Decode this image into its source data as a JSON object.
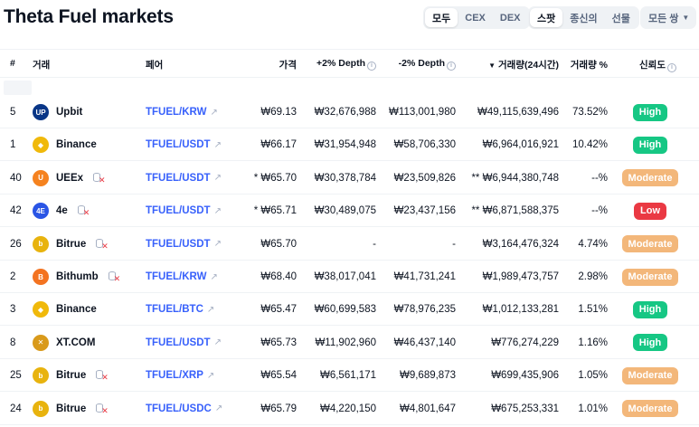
{
  "page": {
    "title": "Theta Fuel markets"
  },
  "filters": {
    "type_options": [
      "모두",
      "CEX",
      "DEX"
    ],
    "type_active": 0,
    "market_options": [
      "스팟",
      "종신의",
      "선물"
    ],
    "market_active": 0,
    "pair_select": {
      "label": "모든 쌍",
      "icon": "chevron-down-icon"
    }
  },
  "table": {
    "headers": {
      "rank": "#",
      "exchange": "거래",
      "pair": "페어",
      "price": "가격",
      "depth_plus": "+2% Depth",
      "depth_minus": "-2% Depth",
      "volume": "거래량(24시간)",
      "volume_sort_icon": "sort-down-icon",
      "volume_pct": "거래량 %",
      "trust": "신뢰도",
      "info_icon": "info-icon"
    },
    "rows": [
      {
        "rank": "5",
        "exchange": "Upbit",
        "logo_text": "UP",
        "logo_color": "#093687",
        "flag": false,
        "pair": "TFUEL/KRW",
        "price": "₩69.13",
        "depth_plus": "₩32,676,988",
        "depth_minus": "₩113,001,980",
        "volume": "₩49,115,639,496",
        "volume_pct": "73.52%",
        "trust": "High"
      },
      {
        "rank": "1",
        "exchange": "Binance",
        "logo_text": "◆",
        "logo_color": "#f0b90b",
        "flag": false,
        "pair": "TFUEL/USDT",
        "price": "₩66.17",
        "depth_plus": "₩31,954,948",
        "depth_minus": "₩58,706,330",
        "volume": "₩6,964,016,921",
        "volume_pct": "10.42%",
        "trust": "High"
      },
      {
        "rank": "40",
        "exchange": "UEEx",
        "logo_text": "U",
        "logo_color": "#f5821f",
        "flag": true,
        "pair": "TFUEL/USDT",
        "price": "* ₩65.70",
        "depth_plus": "₩30,378,784",
        "depth_minus": "₩23,509,826",
        "volume": "** ₩6,944,380,748",
        "volume_pct": "--%",
        "trust": "Moderate"
      },
      {
        "rank": "42",
        "exchange": "4e",
        "logo_text": "4E",
        "logo_color": "#2a55e5",
        "flag": true,
        "pair": "TFUEL/USDT",
        "price": "* ₩65.71",
        "depth_plus": "₩30,489,075",
        "depth_minus": "₩23,437,156",
        "volume": "** ₩6,871,588,375",
        "volume_pct": "--%",
        "trust": "Low"
      },
      {
        "rank": "26",
        "exchange": "Bitrue",
        "logo_text": "b",
        "logo_color": "#e8b30e",
        "flag": true,
        "pair": "TFUEL/USDT",
        "price": "₩65.70",
        "depth_plus": "-",
        "depth_minus": "-",
        "volume": "₩3,164,476,324",
        "volume_pct": "4.74%",
        "trust": "Moderate"
      },
      {
        "rank": "2",
        "exchange": "Bithumb",
        "logo_text": "B",
        "logo_color": "#f37321",
        "flag": true,
        "pair": "TFUEL/KRW",
        "price": "₩68.40",
        "depth_plus": "₩38,017,041",
        "depth_minus": "₩41,731,241",
        "volume": "₩1,989,473,757",
        "volume_pct": "2.98%",
        "trust": "Moderate"
      },
      {
        "rank": "3",
        "exchange": "Binance",
        "logo_text": "◆",
        "logo_color": "#f0b90b",
        "flag": false,
        "pair": "TFUEL/BTC",
        "price": "₩65.47",
        "depth_plus": "₩60,699,583",
        "depth_minus": "₩78,976,235",
        "volume": "₩1,012,133,281",
        "volume_pct": "1.51%",
        "trust": "High"
      },
      {
        "rank": "8",
        "exchange": "XT.COM",
        "logo_text": "✕",
        "logo_color": "#d99a1b",
        "flag": false,
        "pair": "TFUEL/USDT",
        "price": "₩65.73",
        "depth_plus": "₩11,902,960",
        "depth_minus": "₩46,437,140",
        "volume": "₩776,274,229",
        "volume_pct": "1.16%",
        "trust": "High"
      },
      {
        "rank": "25",
        "exchange": "Bitrue",
        "logo_text": "b",
        "logo_color": "#e8b30e",
        "flag": true,
        "pair": "TFUEL/XRP",
        "price": "₩65.54",
        "depth_plus": "₩6,561,171",
        "depth_minus": "₩9,689,873",
        "volume": "₩699,435,906",
        "volume_pct": "1.05%",
        "trust": "Moderate"
      },
      {
        "rank": "24",
        "exchange": "Bitrue",
        "logo_text": "b",
        "logo_color": "#e8b30e",
        "flag": true,
        "pair": "TFUEL/USDC",
        "price": "₩65.79",
        "depth_plus": "₩4,220,150",
        "depth_minus": "₩4,801,647",
        "volume": "₩675,253,331",
        "volume_pct": "1.01%",
        "trust": "Moderate"
      }
    ]
  },
  "trust_colors": {
    "High": "#16c784",
    "Moderate": "#f3b77a",
    "Low": "#ea3943"
  }
}
